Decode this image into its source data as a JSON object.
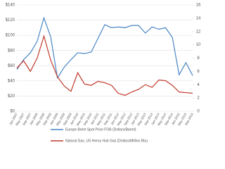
{
  "chart_data": {
    "type": "line",
    "categories": [
      "Jan-2007",
      "May-2007",
      "Sep-2007",
      "Jan-2008",
      "May-2008",
      "Sep-2008",
      "Jan-2009",
      "May-2009",
      "Sep-2009",
      "Jan-2010",
      "May-2010",
      "Sep-2010",
      "Jan-2011",
      "May-2011",
      "Sep-2011",
      "Jan-2012",
      "May-2012",
      "Sep-2012",
      "Jan-2013",
      "May-2013",
      "Sep-2013",
      "Jan-2014",
      "May-2014",
      "Sep-2014",
      "Jan-2015",
      "May-2015",
      "Sep-2015"
    ],
    "series": [
      {
        "name": "Europe Brent Spot Price FOB (Dollars/Barrel)",
        "color": "#4a86c5",
        "values": [
          55,
          68,
          77,
          92,
          123,
          98,
          44,
          58,
          68,
          77,
          76,
          78,
          96,
          114,
          110,
          111,
          110,
          113,
          113,
          103,
          111,
          108,
          110,
          97,
          48,
          64,
          47
        ]
      },
      {
        "name": "Natural Gas, US Henry Hub Gas  (Dollars/Million Btu)",
        "color": "#c0392b",
        "axis": "y2",
        "values": [
          6.5,
          7.6,
          6,
          8,
          11.3,
          7.7,
          5.2,
          3.8,
          3,
          5.8,
          4.1,
          3.9,
          4.5,
          4.3,
          3.9,
          2.7,
          2.4,
          2.9,
          3.3,
          4,
          3.6,
          4.7,
          4.6,
          3.9,
          2.9,
          2.8,
          2.7
        ]
      }
    ],
    "ylim": [
      0,
      140
    ],
    "yticks": [
      {
        "value": 0,
        "label": "$0"
      },
      {
        "value": 20,
        "label": "$20"
      },
      {
        "value": 40,
        "label": "$40"
      },
      {
        "value": 60,
        "label": "$60"
      },
      {
        "value": 80,
        "label": "$80"
      },
      {
        "value": 100,
        "label": "$100"
      },
      {
        "value": 120,
        "label": "$120"
      },
      {
        "value": 140,
        "label": "$140"
      }
    ],
    "y2lim": [
      0,
      16
    ],
    "y2ticks": [
      0,
      2,
      4,
      6,
      8,
      10,
      12,
      14,
      16
    ],
    "grid": true
  }
}
